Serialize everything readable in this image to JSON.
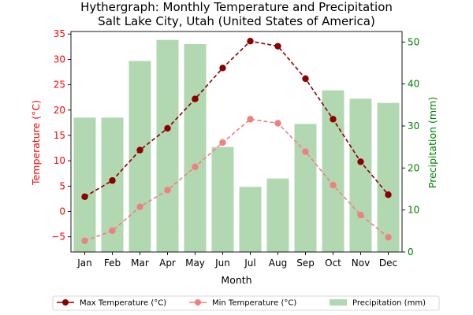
{
  "chart_data": {
    "type": "bar+line",
    "title_line1": "Hythergraph: Monthly Temperature and Precipitation",
    "title_line2": "Salt Lake City, Utah (United States of America)",
    "xlabel": "Month",
    "ylabel_left": "Temperature (°C)",
    "ylabel_right": "Precipitation (mm)",
    "categories": [
      "Jan",
      "Feb",
      "Mar",
      "Apr",
      "May",
      "Jun",
      "Jul",
      "Aug",
      "Sep",
      "Oct",
      "Nov",
      "Dec"
    ],
    "ylim_left": [
      -8,
      35.5
    ],
    "yticks_left": [
      -5,
      0,
      5,
      10,
      15,
      20,
      25,
      30,
      35
    ],
    "ylim_right": [
      0,
      52.5
    ],
    "yticks_right": [
      0,
      10,
      20,
      30,
      40,
      50
    ],
    "series": [
      {
        "name": "Max Temperature (°C)",
        "kind": "line",
        "axis": "left",
        "color": "#8b0000",
        "values": [
          2.9,
          6.1,
          12.1,
          16.4,
          22.2,
          28.3,
          33.6,
          32.6,
          26.2,
          18.2,
          9.8,
          3.3
        ]
      },
      {
        "name": "Min Temperature (°C)",
        "kind": "line",
        "axis": "left",
        "color": "#f08080",
        "values": [
          -5.8,
          -3.8,
          0.9,
          4.2,
          8.8,
          13.6,
          18.2,
          17.4,
          11.8,
          5.2,
          -0.7,
          -5.1
        ]
      },
      {
        "name": "Precipitation (mm)",
        "kind": "bar",
        "axis": "right",
        "color": "#b2d8b2",
        "values": [
          32,
          32,
          45.5,
          50.5,
          49.5,
          25,
          15.5,
          17.5,
          30.5,
          38.5,
          36.5,
          35.5
        ]
      }
    ],
    "left_axis_color": "#ff0000",
    "right_axis_color": "#008000",
    "legend_position": "bottom"
  }
}
